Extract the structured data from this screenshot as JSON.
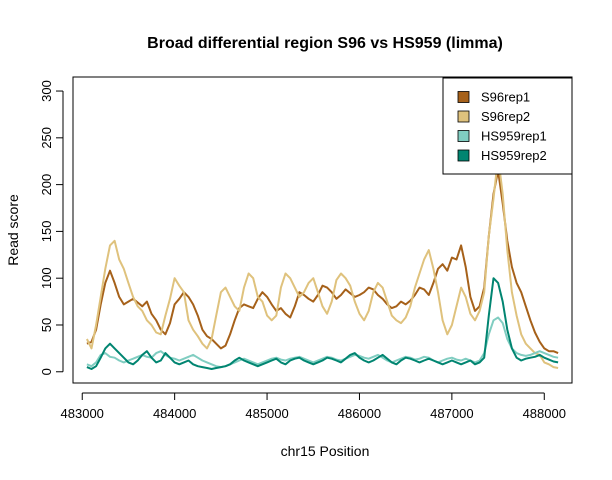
{
  "chart_data": {
    "type": "line",
    "title": "Broad differential region S96 vs HS959 (limma)",
    "xlabel": "chr15 Position",
    "ylabel": "Read score",
    "xlim": [
      482900,
      488300
    ],
    "ylim": [
      -12,
      315
    ],
    "x_ticks": [
      483000,
      484000,
      485000,
      486000,
      487000,
      488000
    ],
    "y_ticks": [
      0,
      50,
      100,
      150,
      200,
      250,
      300
    ],
    "legend_position": "top-right",
    "grid": false,
    "series": [
      {
        "name": "S96rep1",
        "color": "#A6611A",
        "x": [
          483050,
          483100,
          483150,
          483200,
          483250,
          483300,
          483350,
          483400,
          483450,
          483500,
          483550,
          483600,
          483650,
          483700,
          483750,
          483800,
          483850,
          483900,
          483950,
          484000,
          484050,
          484100,
          484150,
          484200,
          484250,
          484300,
          484350,
          484400,
          484450,
          484500,
          484550,
          484600,
          484650,
          484700,
          484750,
          484800,
          484850,
          484900,
          484950,
          485000,
          485050,
          485100,
          485150,
          485200,
          485250,
          485300,
          485350,
          485400,
          485450,
          485500,
          485550,
          485600,
          485650,
          485700,
          485750,
          485800,
          485850,
          485900,
          485950,
          486000,
          486050,
          486100,
          486150,
          486200,
          486250,
          486300,
          486350,
          486400,
          486450,
          486500,
          486550,
          486600,
          486650,
          486700,
          486750,
          486800,
          486850,
          486900,
          486950,
          487000,
          487050,
          487100,
          487150,
          487200,
          487250,
          487300,
          487350,
          487400,
          487450,
          487500,
          487550,
          487600,
          487650,
          487700,
          487750,
          487800,
          487850,
          487900,
          487950,
          488000,
          488050,
          488100,
          488150
        ],
        "y": [
          30,
          32,
          45,
          72,
          95,
          108,
          95,
          80,
          72,
          75,
          78,
          74,
          70,
          75,
          62,
          55,
          45,
          40,
          52,
          72,
          78,
          85,
          80,
          72,
          60,
          45,
          38,
          35,
          30,
          25,
          28,
          40,
          55,
          68,
          72,
          70,
          68,
          78,
          85,
          80,
          72,
          65,
          68,
          62,
          58,
          70,
          85,
          82,
          78,
          75,
          82,
          92,
          90,
          85,
          78,
          82,
          88,
          84,
          80,
          82,
          85,
          90,
          88,
          82,
          78,
          72,
          68,
          70,
          75,
          72,
          76,
          82,
          90,
          88,
          82,
          95,
          110,
          115,
          108,
          122,
          120,
          135,
          112,
          80,
          65,
          70,
          90,
          145,
          190,
          215,
          180,
          140,
          112,
          95,
          85,
          70,
          55,
          42,
          32,
          25,
          22,
          22,
          20
        ]
      },
      {
        "name": "S96rep2",
        "color": "#DFC27D",
        "x": [
          483050,
          483100,
          483150,
          483200,
          483250,
          483300,
          483350,
          483400,
          483450,
          483500,
          483550,
          483600,
          483650,
          483700,
          483750,
          483800,
          483850,
          483900,
          483950,
          484000,
          484050,
          484100,
          484150,
          484200,
          484250,
          484300,
          484350,
          484400,
          484450,
          484500,
          484550,
          484600,
          484650,
          484700,
          484750,
          484800,
          484850,
          484900,
          484950,
          485000,
          485050,
          485100,
          485150,
          485200,
          485250,
          485300,
          485350,
          485400,
          485450,
          485500,
          485550,
          485600,
          485650,
          485700,
          485750,
          485800,
          485850,
          485900,
          485950,
          486000,
          486050,
          486100,
          486150,
          486200,
          486250,
          486300,
          486350,
          486400,
          486450,
          486500,
          486550,
          486600,
          486650,
          486700,
          486750,
          486800,
          486850,
          486900,
          486950,
          487000,
          487050,
          487100,
          487150,
          487200,
          487250,
          487300,
          487350,
          487400,
          487450,
          487500,
          487550,
          487600,
          487650,
          487700,
          487750,
          487800,
          487850,
          487900,
          487950,
          488000,
          488050,
          488100,
          488150
        ],
        "y": [
          35,
          25,
          50,
          80,
          110,
          135,
          140,
          120,
          110,
          95,
          80,
          70,
          65,
          55,
          50,
          42,
          40,
          60,
          78,
          100,
          92,
          85,
          55,
          45,
          38,
          30,
          25,
          35,
          60,
          85,
          90,
          80,
          70,
          65,
          90,
          105,
          100,
          80,
          75,
          60,
          55,
          60,
          90,
          105,
          100,
          90,
          80,
          85,
          95,
          100,
          85,
          70,
          62,
          75,
          98,
          105,
          100,
          92,
          75,
          62,
          55,
          65,
          85,
          95,
          90,
          75,
          60,
          55,
          52,
          58,
          70,
          90,
          105,
          120,
          130,
          110,
          85,
          55,
          40,
          50,
          70,
          90,
          80,
          62,
          55,
          65,
          85,
          145,
          185,
          230,
          190,
          130,
          85,
          60,
          40,
          30,
          25,
          20,
          18,
          10,
          8,
          5,
          4
        ]
      },
      {
        "name": "HS959rep1",
        "color": "#80CDC1",
        "x": [
          483050,
          483100,
          483150,
          483200,
          483250,
          483300,
          483350,
          483400,
          483450,
          483500,
          483550,
          483600,
          483650,
          483700,
          483750,
          483800,
          483850,
          483900,
          483950,
          484000,
          484050,
          484100,
          484150,
          484200,
          484250,
          484300,
          484350,
          484400,
          484450,
          484500,
          484550,
          484600,
          484650,
          484700,
          484750,
          484800,
          484850,
          484900,
          484950,
          485000,
          485050,
          485100,
          485150,
          485200,
          485250,
          485300,
          485350,
          485400,
          485450,
          485500,
          485550,
          485600,
          485650,
          485700,
          485750,
          485800,
          485850,
          485900,
          485950,
          486000,
          486050,
          486100,
          486150,
          486200,
          486250,
          486300,
          486350,
          486400,
          486450,
          486500,
          486550,
          486600,
          486650,
          486700,
          486750,
          486800,
          486850,
          486900,
          486950,
          487000,
          487050,
          487100,
          487150,
          487200,
          487250,
          487300,
          487350,
          487400,
          487450,
          487500,
          487550,
          487600,
          487650,
          487700,
          487750,
          487800,
          487850,
          487900,
          487950,
          488000,
          488050,
          488100,
          488150
        ],
        "y": [
          8,
          6,
          10,
          18,
          20,
          16,
          15,
          12,
          10,
          12,
          14,
          16,
          18,
          16,
          15,
          20,
          22,
          18,
          15,
          14,
          12,
          14,
          16,
          18,
          15,
          12,
          10,
          8,
          6,
          5,
          6,
          8,
          10,
          12,
          14,
          12,
          10,
          8,
          10,
          12,
          14,
          15,
          13,
          12,
          14,
          15,
          16,
          14,
          12,
          10,
          12,
          14,
          16,
          15,
          13,
          12,
          14,
          16,
          18,
          17,
          15,
          14,
          16,
          18,
          15,
          12,
          10,
          12,
          14,
          16,
          15,
          13,
          14,
          16,
          15,
          12,
          10,
          12,
          14,
          15,
          13,
          12,
          14,
          12,
          10,
          12,
          20,
          40,
          55,
          58,
          52,
          35,
          25,
          20,
          18,
          17,
          18,
          20,
          22,
          20,
          18,
          16,
          15
        ]
      },
      {
        "name": "HS959rep2",
        "color": "#018571",
        "x": [
          483050,
          483100,
          483150,
          483200,
          483250,
          483300,
          483350,
          483400,
          483450,
          483500,
          483550,
          483600,
          483650,
          483700,
          483750,
          483800,
          483850,
          483900,
          483950,
          484000,
          484050,
          484100,
          484150,
          484200,
          484250,
          484300,
          484350,
          484400,
          484450,
          484500,
          484550,
          484600,
          484650,
          484700,
          484750,
          484800,
          484850,
          484900,
          484950,
          485000,
          485050,
          485100,
          485150,
          485200,
          485250,
          485300,
          485350,
          485400,
          485450,
          485500,
          485550,
          485600,
          485650,
          485700,
          485750,
          485800,
          485850,
          485900,
          485950,
          486000,
          486050,
          486100,
          486150,
          486200,
          486250,
          486300,
          486350,
          486400,
          486450,
          486500,
          486550,
          486600,
          486650,
          486700,
          486750,
          486800,
          486850,
          486900,
          486950,
          487000,
          487050,
          487100,
          487150,
          487200,
          487250,
          487300,
          487350,
          487400,
          487450,
          487500,
          487550,
          487600,
          487650,
          487700,
          487750,
          487800,
          487850,
          487900,
          487950,
          488000,
          488050,
          488100,
          488150
        ],
        "y": [
          5,
          3,
          6,
          15,
          25,
          30,
          25,
          20,
          15,
          10,
          8,
          12,
          18,
          22,
          15,
          10,
          12,
          20,
          15,
          10,
          8,
          10,
          12,
          8,
          6,
          5,
          4,
          3,
          4,
          5,
          6,
          8,
          12,
          15,
          12,
          10,
          8,
          6,
          8,
          10,
          12,
          14,
          10,
          8,
          12,
          14,
          15,
          12,
          10,
          8,
          10,
          12,
          15,
          14,
          12,
          10,
          14,
          18,
          20,
          15,
          12,
          10,
          12,
          15,
          18,
          14,
          10,
          8,
          12,
          15,
          14,
          12,
          10,
          12,
          14,
          12,
          10,
          8,
          10,
          12,
          10,
          8,
          10,
          12,
          8,
          10,
          15,
          60,
          100,
          95,
          75,
          45,
          25,
          15,
          12,
          14,
          15,
          16,
          18,
          15,
          13,
          11,
          10
        ]
      }
    ]
  }
}
